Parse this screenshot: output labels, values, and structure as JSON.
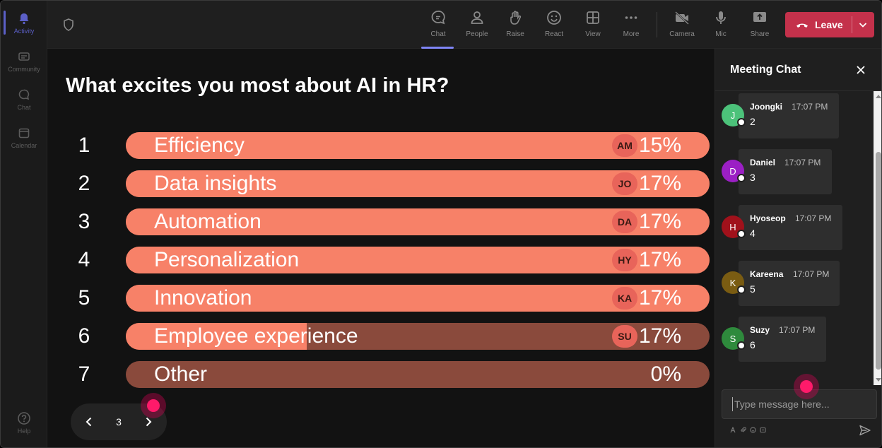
{
  "rail": {
    "items": [
      {
        "label": "Activity",
        "icon": "bell-icon"
      },
      {
        "label": "Community",
        "icon": "community-icon"
      },
      {
        "label": "Chat",
        "icon": "chat-icon"
      },
      {
        "label": "Calendar",
        "icon": "calendar-icon"
      }
    ],
    "help_label": "Help"
  },
  "toolbar": {
    "buttons": [
      {
        "label": "Chat",
        "icon": "chat-icon"
      },
      {
        "label": "People",
        "icon": "people-icon"
      },
      {
        "label": "Raise",
        "icon": "raise-hand-icon"
      },
      {
        "label": "React",
        "icon": "react-icon"
      },
      {
        "label": "View",
        "icon": "view-grid-icon"
      },
      {
        "label": "More",
        "icon": "more-icon"
      },
      {
        "label": "Camera",
        "icon": "camera-off-icon"
      },
      {
        "label": "Mic",
        "icon": "mic-icon"
      },
      {
        "label": "Share",
        "icon": "share-icon"
      }
    ],
    "leave_label": "Leave"
  },
  "poll": {
    "question": "What excites you most about AI in HR?",
    "options": [
      {
        "num": "1",
        "label": "Efficiency",
        "avatar": "AM",
        "pct": "15%",
        "fill": 1.0
      },
      {
        "num": "2",
        "label": "Data insights",
        "avatar": "JO",
        "pct": "17%",
        "fill": 1.0
      },
      {
        "num": "3",
        "label": "Automation",
        "avatar": "DA",
        "pct": "17%",
        "fill": 1.0
      },
      {
        "num": "4",
        "label": "Personalization",
        "avatar": "HY",
        "pct": "17%",
        "fill": 1.0
      },
      {
        "num": "5",
        "label": "Innovation",
        "avatar": "KA",
        "pct": "17%",
        "fill": 1.0
      },
      {
        "num": "6",
        "label": "Employee experience",
        "avatar": "SU",
        "pct": "17%",
        "fill": 0.31
      },
      {
        "num": "7",
        "label": "Other",
        "avatar": "",
        "pct": "0%",
        "fill": 0.0
      }
    ],
    "page": "3"
  },
  "chat": {
    "title": "Meeting Chat",
    "messages": [
      {
        "initial": "J",
        "name": "Joongki",
        "time": "17:07 PM",
        "text": "2",
        "color": "#4cc27a"
      },
      {
        "initial": "D",
        "name": "Daniel",
        "time": "17:07 PM",
        "text": "3",
        "color": "#9b1fc4"
      },
      {
        "initial": "H",
        "name": "Hyoseop",
        "time": "17:07 PM",
        "text": "4",
        "color": "#a0111b"
      },
      {
        "initial": "K",
        "name": "Kareena",
        "time": "17:07 PM",
        "text": "5",
        "color": "#7a5c12"
      },
      {
        "initial": "S",
        "name": "Suzy",
        "time": "17:07 PM",
        "text": "6",
        "color": "#2e8a3c"
      }
    ],
    "input_placeholder": "Type message here..."
  },
  "colors": {
    "bar_fill": "#f78168",
    "bar_track": "#8a4a3c",
    "leave": "#c4314b",
    "accent": "#7f85f5"
  }
}
